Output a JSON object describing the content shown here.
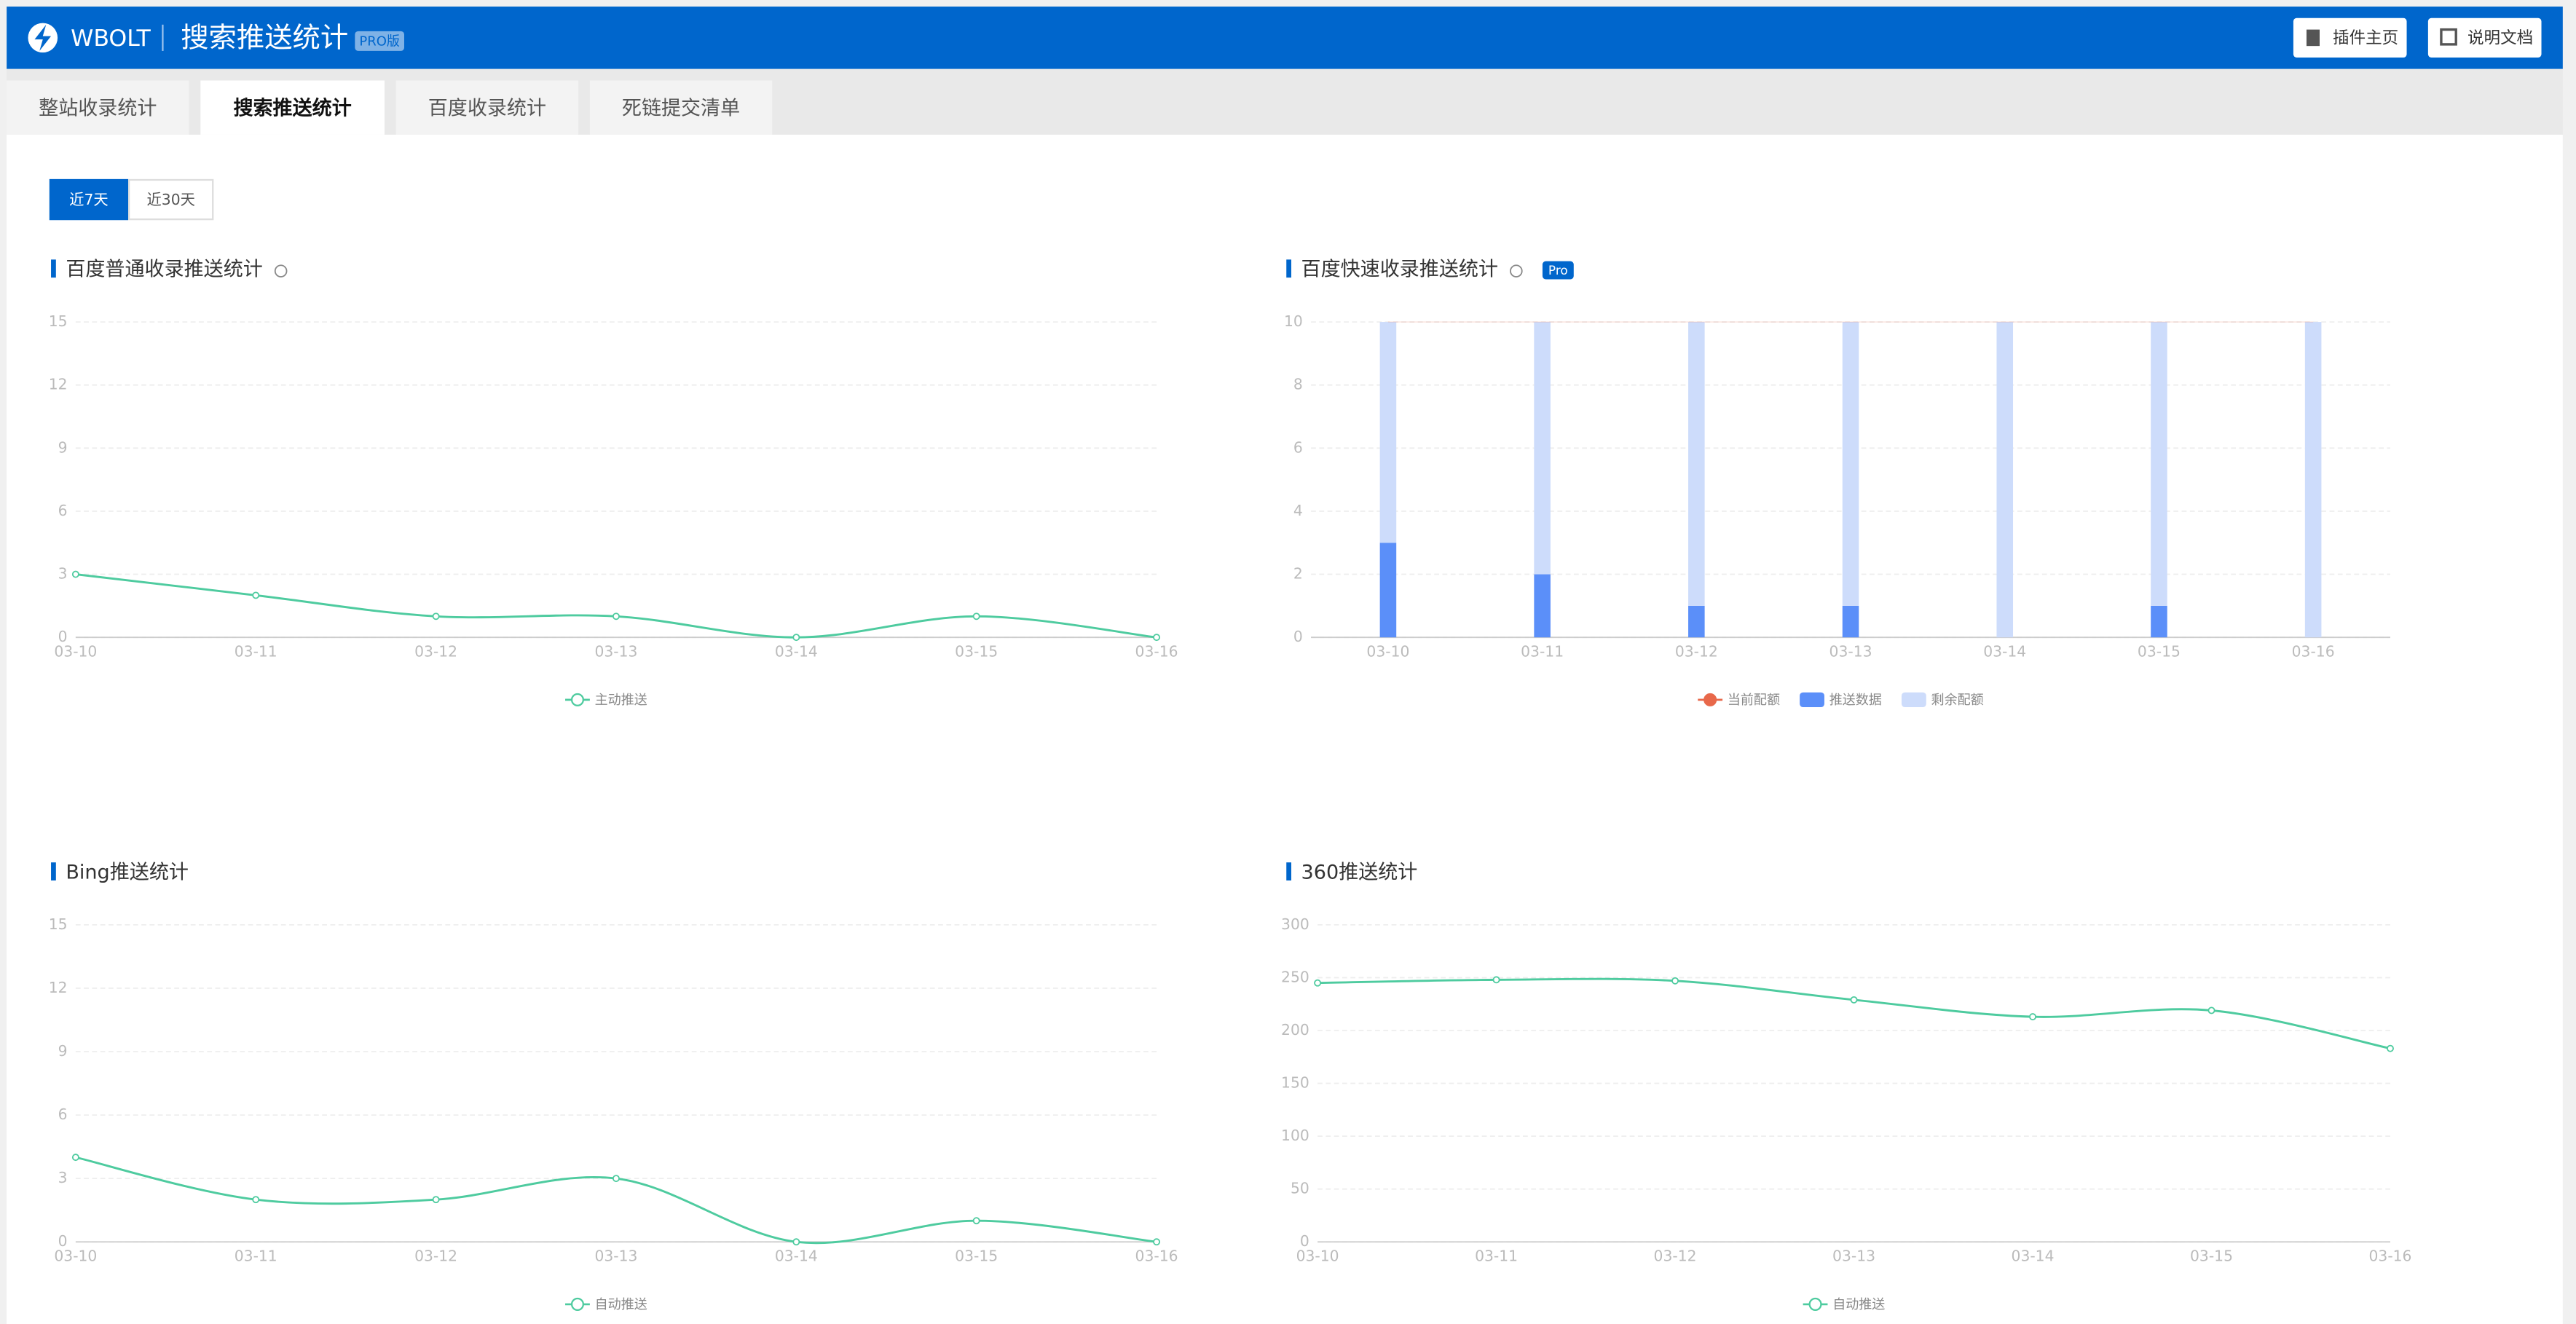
{
  "header": {
    "brand": "WBOLT",
    "title": "搜索推送统计",
    "badge": "PRO版",
    "buttons": [
      "插件主页",
      "说明文档"
    ]
  },
  "tabs": [
    "整站收录统计",
    "搜索推送统计",
    "百度收录统计",
    "死链提交清单"
  ],
  "ranges": [
    "近7天",
    "近30天"
  ],
  "chart_data": [
    {
      "type": "line",
      "title": "百度普通收录推送统计",
      "categories": [
        "03-10",
        "03-11",
        "03-12",
        "03-13",
        "03-14",
        "03-15",
        "03-16"
      ],
      "series": [
        {
          "name": "主动推送",
          "color": "#4ecb9f",
          "values": [
            3,
            2,
            1,
            1,
            0,
            1,
            0
          ]
        }
      ],
      "ylim": [
        0,
        15
      ],
      "yticks": [
        0,
        3,
        6,
        9,
        12,
        15
      ],
      "grid": true
    },
    {
      "type": "bar",
      "title": "百度快速收录推送统计",
      "badge": "Pro",
      "stacked": true,
      "categories": [
        "03-10",
        "03-11",
        "03-12",
        "03-13",
        "03-14",
        "03-15",
        "03-16"
      ],
      "series": [
        {
          "name": "当前配额",
          "color": "#e8684a",
          "kind": "line",
          "values": [
            10,
            10,
            10,
            10,
            10,
            10,
            10
          ]
        },
        {
          "name": "推送数据",
          "color": "#5b8ff9",
          "values": [
            3,
            2,
            1,
            1,
            0,
            1,
            0
          ]
        },
        {
          "name": "剩余配额",
          "color": "#cddcfb",
          "values": [
            7,
            8,
            9,
            9,
            10,
            9,
            10
          ]
        }
      ],
      "ylim": [
        0,
        10
      ],
      "yticks": [
        0,
        2,
        4,
        6,
        8,
        10
      ],
      "grid": true
    },
    {
      "type": "line",
      "title": "Bing推送统计",
      "categories": [
        "03-10",
        "03-11",
        "03-12",
        "03-13",
        "03-14",
        "03-15",
        "03-16"
      ],
      "series": [
        {
          "name": "自动推送",
          "color": "#4ecb9f",
          "values": [
            4,
            2,
            2,
            3,
            0,
            1,
            0
          ]
        }
      ],
      "ylim": [
        0,
        15
      ],
      "yticks": [
        0,
        3,
        6,
        9,
        12,
        15
      ],
      "grid": true
    },
    {
      "type": "line",
      "title": "360推送统计",
      "categories": [
        "03-10",
        "03-11",
        "03-12",
        "03-13",
        "03-14",
        "03-15",
        "03-16"
      ],
      "series": [
        {
          "name": "自动推送",
          "color": "#4ecb9f",
          "values": [
            245,
            248,
            247,
            229,
            213,
            219,
            183
          ]
        }
      ],
      "ylim": [
        0,
        300
      ],
      "yticks": [
        0,
        50,
        100,
        150,
        200,
        250,
        300
      ],
      "grid": true
    }
  ]
}
